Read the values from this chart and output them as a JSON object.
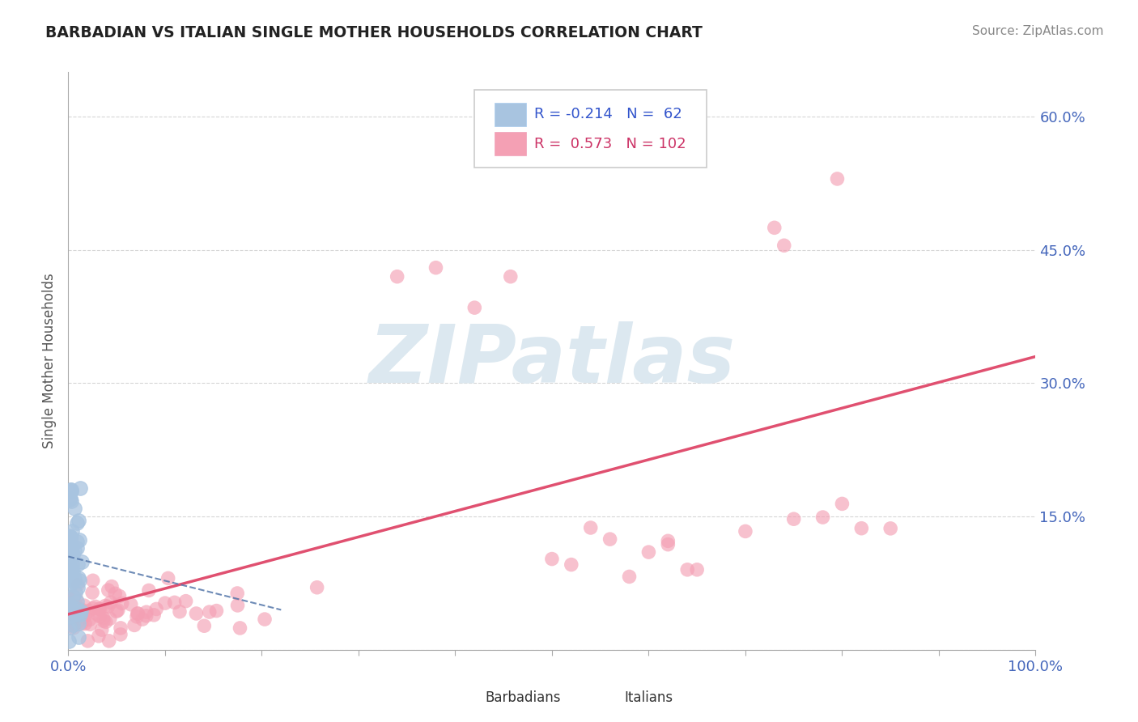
{
  "title": "BARBADIAN VS ITALIAN SINGLE MOTHER HOUSEHOLDS CORRELATION CHART",
  "source_text": "Source: ZipAtlas.com",
  "ylabel": "Single Mother Households",
  "x_min": 0.0,
  "x_max": 1.0,
  "y_min": 0.0,
  "y_max": 0.65,
  "y_ticks": [
    0.0,
    0.15,
    0.3,
    0.45,
    0.6
  ],
  "y_tick_labels": [
    "",
    "15.0%",
    "30.0%",
    "45.0%",
    "60.0%"
  ],
  "barbadian_R": -0.214,
  "barbadian_N": 62,
  "italian_R": 0.573,
  "italian_N": 102,
  "barbadian_color": "#a8c4e0",
  "italian_color": "#f4a0b4",
  "barbadian_line_color": "#5577aa",
  "italian_line_color": "#e05070",
  "watermark_text": "ZIPatlas",
  "watermark_color": "#dce8f0",
  "background_color": "#ffffff",
  "grid_color": "#cccccc",
  "tick_color": "#4466bb",
  "title_color": "#222222",
  "source_color": "#888888",
  "legend_text_color_blue": "#3355cc",
  "legend_text_color_pink": "#cc3366"
}
